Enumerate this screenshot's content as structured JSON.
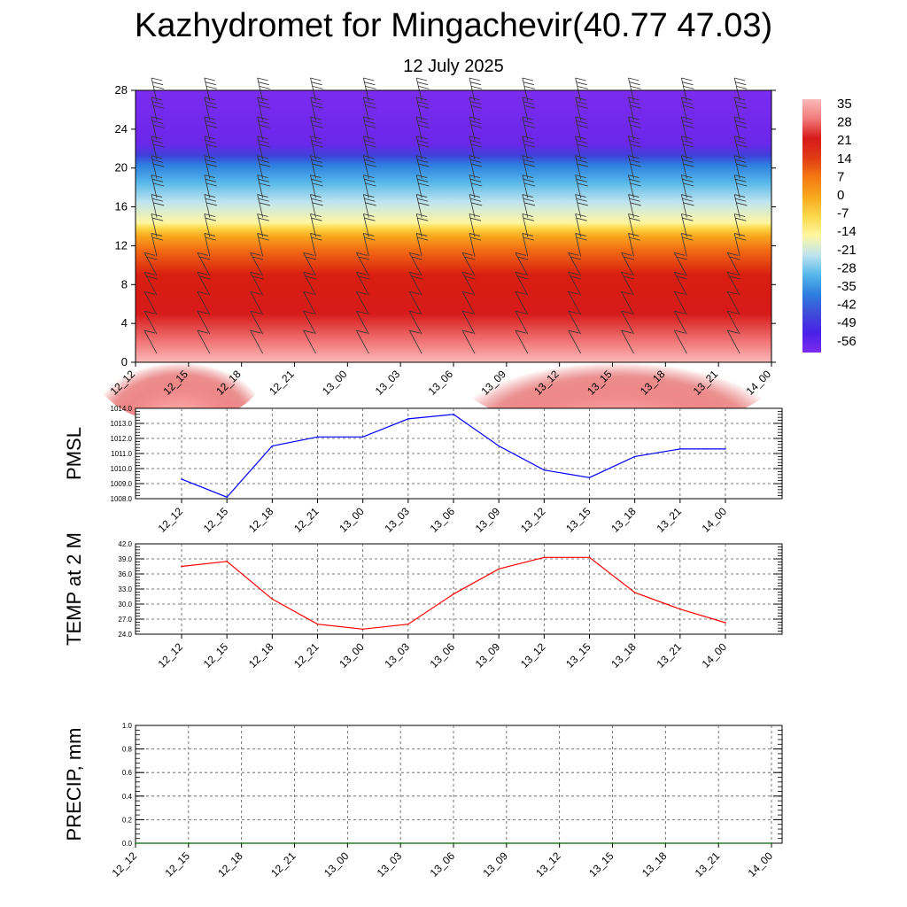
{
  "title": "Kazhydromet for Mingachevir(40.77 47.03)",
  "subtitle": "12 July 2025",
  "chart_data": [
    {
      "type": "heatmap",
      "name": "temperature-cross-section",
      "x_tick_labels": [
        "12_12",
        "12_15",
        "12_18",
        "12_21",
        "13_00",
        "13_03",
        "13_06",
        "13_09",
        "13_12",
        "13_15",
        "13_18",
        "13_21",
        "14_00"
      ],
      "y_ticks": [
        0,
        4,
        8,
        12,
        16,
        20,
        24,
        28
      ],
      "ylim": [
        0,
        28
      ],
      "colorbar_labels": [
        "35",
        "28",
        "21",
        "14",
        "7",
        "0",
        "-7",
        "-14",
        "-21",
        "-28",
        "-35",
        "-42",
        "-49",
        "-56"
      ],
      "color_stops": [
        "#fbb9b9",
        "#f27a7a",
        "#d71a1a",
        "#e03a14",
        "#f57a12",
        "#f9a81e",
        "#fcd84a",
        "#fef7a2",
        "#bfe4ef",
        "#57b8ea",
        "#2d7fe0",
        "#3f4bd9",
        "#4a20e8",
        "#7b2cf0"
      ],
      "wind_barbs": "true"
    },
    {
      "type": "line",
      "name": "PMSL",
      "ylabel": "PMSL",
      "x": [
        "12_12",
        "12_15",
        "12_18",
        "12_21",
        "13_00",
        "13_03",
        "13_06",
        "13_09",
        "13_12",
        "13_15",
        "13_18",
        "13_21",
        "14_00"
      ],
      "series": [
        {
          "values": [
            1009.3,
            1008.1,
            1011.5,
            1012.1,
            1012.1,
            1013.3,
            1013.6,
            1011.5,
            1009.9,
            1009.4,
            1010.8,
            1011.3,
            1011.3
          ],
          "color": "#0000ff"
        }
      ],
      "ylim": [
        1008.0,
        1014.0
      ],
      "y_ticks": [
        "1008.0",
        "1009.0",
        "1010.0",
        "1011.0",
        "1012.0",
        "1013.0",
        "1014.0"
      ],
      "grid": "dashed"
    },
    {
      "type": "line",
      "name": "TEMP",
      "ylabel": "TEMP at 2 M",
      "x": [
        "12_12",
        "12_15",
        "12_18",
        "12_21",
        "13_00",
        "13_03",
        "13_06",
        "13_09",
        "13_12",
        "13_15",
        "13_18",
        "13_21",
        "14_00"
      ],
      "series": [
        {
          "values": [
            37.5,
            38.5,
            31.0,
            26.0,
            25.0,
            26.0,
            32.0,
            37.0,
            39.3,
            39.3,
            32.3,
            29.0,
            26.3
          ],
          "color": "#ff0000"
        }
      ],
      "ylim": [
        24.0,
        42.0
      ],
      "y_ticks": [
        "24.0",
        "27.0",
        "30.0",
        "33.0",
        "36.0",
        "39.0",
        "42.0"
      ],
      "grid": "dashed"
    },
    {
      "type": "line",
      "name": "PRECIP",
      "ylabel": "PRECIP, mm",
      "x_tick_labels": [
        "12_12",
        "12_15",
        "12_18",
        "12_21",
        "13_00",
        "13_03",
        "13_06",
        "13_09",
        "13_12",
        "13_15",
        "13_18",
        "13_21",
        "14_00"
      ],
      "series": [
        {
          "values": [
            0,
            0,
            0,
            0,
            0,
            0,
            0,
            0,
            0,
            0,
            0,
            0,
            0
          ],
          "color": "#006400"
        }
      ],
      "ylim": [
        0.0,
        1.0
      ],
      "y_ticks": [
        "0.0",
        "0.2",
        "0.4",
        "0.6",
        "0.8",
        "1.0"
      ],
      "grid": "dashed"
    }
  ]
}
